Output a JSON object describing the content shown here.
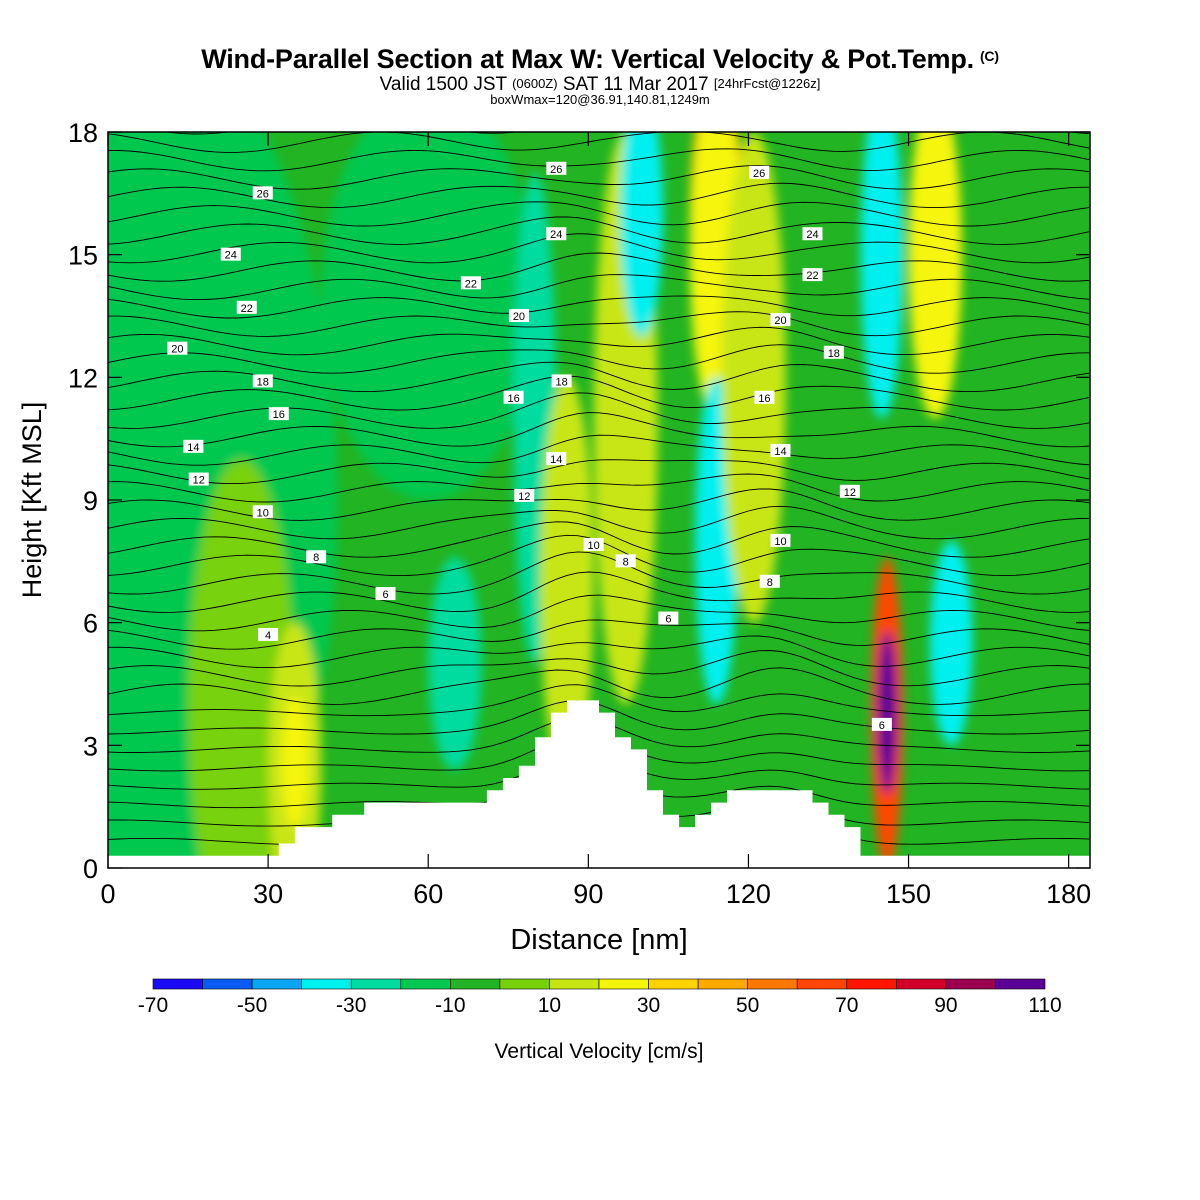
{
  "header": {
    "title": "Wind-Parallel Section at Max W: Vertical Velocity & Pot.Temp.",
    "copyright": "(C)",
    "valid_prefix": "Valid 1500 JST",
    "valid_utc": "(0600Z)",
    "valid_date": "SAT 11 Mar 2017",
    "forecast": "[24hrFcst@1226z]",
    "box_info": "boxWmax=120@36.91,140.81,1249m"
  },
  "chart_data": {
    "type": "heatmap",
    "xlabel": "Distance [nm]",
    "ylabel": "Height [Kft MSL]",
    "xlim": [
      0,
      184
    ],
    "ylim": [
      0,
      18
    ],
    "x_ticks": [
      0,
      30,
      60,
      90,
      120,
      150,
      180
    ],
    "y_ticks": [
      0,
      3,
      6,
      9,
      12,
      15,
      18
    ],
    "colorbar": {
      "label": "Vertical Velocity [cm/s]",
      "ticks": [
        -70,
        -50,
        -30,
        -10,
        10,
        30,
        50,
        70,
        90,
        110
      ],
      "bins": [
        -70,
        -60,
        -50,
        -40,
        -30,
        -20,
        -10,
        0,
        10,
        20,
        30,
        40,
        50,
        60,
        70,
        80,
        90,
        100,
        110
      ],
      "colors": [
        "#1a0af5",
        "#0a5af5",
        "#0aa5f5",
        "#00f0f0",
        "#00dca0",
        "#00c850",
        "#22b422",
        "#78d20a",
        "#c8e614",
        "#f5f50a",
        "#ffd200",
        "#ffaa00",
        "#ff7800",
        "#ff4600",
        "#ff1400",
        "#d20028",
        "#9b0050",
        "#5a0096"
      ]
    },
    "terrain": [
      [
        0,
        0.3
      ],
      [
        32,
        0.3
      ],
      [
        32,
        0.6
      ],
      [
        35,
        0.6
      ],
      [
        35,
        1.0
      ],
      [
        42,
        1.0
      ],
      [
        42,
        1.3
      ],
      [
        48,
        1.3
      ],
      [
        48,
        1.6
      ],
      [
        71,
        1.6
      ],
      [
        71,
        1.9
      ],
      [
        74,
        1.9
      ],
      [
        74,
        2.2
      ],
      [
        77,
        2.2
      ],
      [
        77,
        2.5
      ],
      [
        80,
        2.5
      ],
      [
        80,
        3.2
      ],
      [
        83,
        3.2
      ],
      [
        83,
        3.8
      ],
      [
        86,
        3.8
      ],
      [
        86,
        4.1
      ],
      [
        92,
        4.1
      ],
      [
        92,
        3.8
      ],
      [
        95,
        3.8
      ],
      [
        95,
        3.2
      ],
      [
        98,
        3.2
      ],
      [
        98,
        2.9
      ],
      [
        101,
        2.9
      ],
      [
        101,
        1.9
      ],
      [
        104,
        1.9
      ],
      [
        104,
        1.3
      ],
      [
        107,
        1.3
      ],
      [
        107,
        1.0
      ],
      [
        110,
        1.0
      ],
      [
        110,
        1.3
      ],
      [
        113,
        1.3
      ],
      [
        113,
        1.6
      ],
      [
        116,
        1.6
      ],
      [
        116,
        1.9
      ],
      [
        132,
        1.9
      ],
      [
        132,
        1.6
      ],
      [
        135,
        1.6
      ],
      [
        135,
        1.3
      ],
      [
        138,
        1.3
      ],
      [
        138,
        1.0
      ],
      [
        141,
        1.0
      ],
      [
        141,
        0.3
      ],
      [
        184,
        0.3
      ]
    ],
    "w_cells": [
      {
        "x": 3,
        "y": 9,
        "rx": 40,
        "ry": 12,
        "w": -12
      },
      {
        "x": 25,
        "y": 4,
        "rx": 10,
        "ry": 6,
        "w": 5
      },
      {
        "x": 35,
        "y": 2.5,
        "rx": 5,
        "ry": 3.5,
        "w": 15
      },
      {
        "x": 35,
        "y": 2.6,
        "rx": 2.5,
        "ry": 1.6,
        "w": 25
      },
      {
        "x": 60,
        "y": 14,
        "rx": 20,
        "ry": 5,
        "w": -12
      },
      {
        "x": 65,
        "y": 5,
        "rx": 5,
        "ry": 2.6,
        "w": -22
      },
      {
        "x": 80,
        "y": 11,
        "rx": 4,
        "ry": 6,
        "w": -22
      },
      {
        "x": 85,
        "y": 4.5,
        "rx": 3,
        "ry": 1,
        "w": 25
      },
      {
        "x": 86,
        "y": 7,
        "rx": 5,
        "ry": 5,
        "w": 15
      },
      {
        "x": 97,
        "y": 11,
        "rx": 6,
        "ry": 7,
        "w": 15
      },
      {
        "x": 100,
        "y": 16,
        "rx": 4,
        "ry": 3,
        "w": -40
      },
      {
        "x": 114,
        "y": 16,
        "rx": 5,
        "ry": 3.5,
        "w": 40
      },
      {
        "x": 114,
        "y": 15,
        "rx": 5,
        "ry": 4,
        "w": 25
      },
      {
        "x": 114,
        "y": 8,
        "rx": 4,
        "ry": 4,
        "w": -32
      },
      {
        "x": 121,
        "y": 12,
        "rx": 6,
        "ry": 6,
        "w": 15
      },
      {
        "x": 145,
        "y": 15,
        "rx": 4,
        "ry": 4,
        "w": -32
      },
      {
        "x": 155,
        "y": 15,
        "rx": 5,
        "ry": 4,
        "w": 25
      },
      {
        "x": 146,
        "y": 3.8,
        "rx": 3,
        "ry": 3.8,
        "w": 60
      },
      {
        "x": 146,
        "y": 3.8,
        "rx": 1.8,
        "ry": 2,
        "w": 100
      },
      {
        "x": 158,
        "y": 5.5,
        "rx": 4,
        "ry": 2.5,
        "w": -32
      }
    ],
    "theta_labels": [
      {
        "text": "26",
        "x": 29,
        "y": 16.5
      },
      {
        "text": "24",
        "x": 23,
        "y": 15
      },
      {
        "text": "22",
        "x": 26,
        "y": 13.7
      },
      {
        "text": "20",
        "x": 13,
        "y": 12.7
      },
      {
        "text": "18",
        "x": 29,
        "y": 11.9
      },
      {
        "text": "16",
        "x": 32,
        "y": 11.1
      },
      {
        "text": "14",
        "x": 16,
        "y": 10.3
      },
      {
        "text": "12",
        "x": 17,
        "y": 9.5
      },
      {
        "text": "10",
        "x": 29,
        "y": 8.7
      },
      {
        "text": "8",
        "x": 39,
        "y": 7.6
      },
      {
        "text": "6",
        "x": 52,
        "y": 6.7
      },
      {
        "text": "4",
        "x": 30,
        "y": 5.7
      },
      {
        "text": "26",
        "x": 84,
        "y": 17.1
      },
      {
        "text": "24",
        "x": 84,
        "y": 15.5
      },
      {
        "text": "22",
        "x": 68,
        "y": 14.3
      },
      {
        "text": "20",
        "x": 77,
        "y": 13.5
      },
      {
        "text": "18",
        "x": 85,
        "y": 11.9
      },
      {
        "text": "16",
        "x": 76,
        "y": 11.5
      },
      {
        "text": "14",
        "x": 84,
        "y": 10
      },
      {
        "text": "12",
        "x": 78,
        "y": 9.1
      },
      {
        "text": "10",
        "x": 91,
        "y": 7.9
      },
      {
        "text": "8",
        "x": 97,
        "y": 7.5
      },
      {
        "text": "6",
        "x": 105,
        "y": 6.1
      },
      {
        "text": "26",
        "x": 122,
        "y": 17
      },
      {
        "text": "24",
        "x": 132,
        "y": 15.5
      },
      {
        "text": "22",
        "x": 132,
        "y": 14.5
      },
      {
        "text": "20",
        "x": 126,
        "y": 13.4
      },
      {
        "text": "18",
        "x": 136,
        "y": 12.6
      },
      {
        "text": "16",
        "x": 123,
        "y": 11.5
      },
      {
        "text": "14",
        "x": 126,
        "y": 10.2
      },
      {
        "text": "12",
        "x": 139,
        "y": 9.2
      },
      {
        "text": "10",
        "x": 126,
        "y": 8.0
      },
      {
        "text": "8",
        "x": 124,
        "y": 7.0
      },
      {
        "text": "6",
        "x": 145,
        "y": 3.5
      }
    ]
  }
}
